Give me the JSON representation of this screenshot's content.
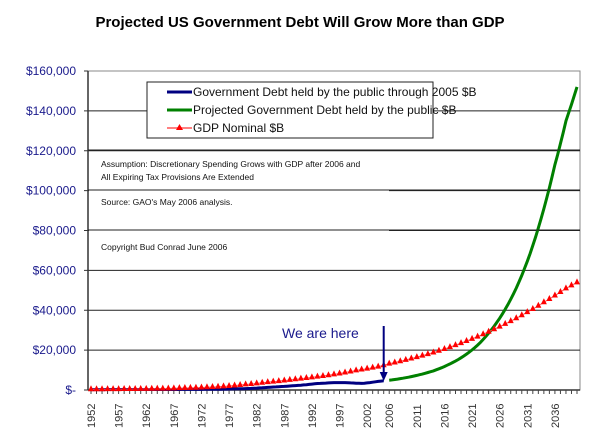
{
  "chart_data": {
    "type": "line",
    "title": "Projected US Government Debt Will Grow More than GDP",
    "xlabel": "",
    "ylabel": "",
    "ylim": [
      0,
      160000
    ],
    "yticks": [
      0,
      20000,
      40000,
      60000,
      80000,
      100000,
      120000,
      140000,
      160000
    ],
    "ytick_labels": [
      "$-",
      "$20,000",
      "$40,000",
      "$60,000",
      "$80,000",
      "$100,000",
      "$120,000",
      "$140,000",
      "$160,000"
    ],
    "xtick_labels": [
      "1952",
      "1957",
      "1962",
      "1967",
      "1972",
      "1977",
      "1982",
      "1987",
      "1992",
      "1997",
      "2002",
      "2006",
      "2011",
      "2016",
      "2021",
      "2026",
      "2031",
      "2036"
    ],
    "grid": "horizontal",
    "legend_position": "top-center",
    "x_start": 1952,
    "x_end": 2040,
    "series": [
      {
        "name": "Government Debt held by the public through 2005 $B",
        "color": "#000080",
        "marker": "none",
        "x": [
          1952,
          1955,
          1960,
          1965,
          1970,
          1975,
          1980,
          1985,
          1990,
          1993,
          1996,
          1998,
          2000,
          2001,
          2002,
          2003,
          2004,
          2005
        ],
        "values": [
          215,
          227,
          237,
          261,
          283,
          395,
          712,
          1507,
          2412,
          3248,
          3734,
          3733,
          3410,
          3320,
          3540,
          3913,
          4296,
          4592
        ]
      },
      {
        "name": "Projected Government Debt held by the public $B",
        "color": "#008000",
        "marker": "none",
        "x": [
          2006,
          2008,
          2010,
          2012,
          2014,
          2016,
          2018,
          2020,
          2022,
          2024,
          2026,
          2028,
          2030,
          2032,
          2034,
          2036,
          2038,
          2040
        ],
        "values": [
          4900,
          5700,
          6700,
          8000,
          9600,
          11800,
          14500,
          18000,
          22500,
          28500,
          36000,
          45500,
          57500,
          72500,
          91000,
          113000,
          135000,
          152000
        ]
      },
      {
        "name": "GDP Nominal $B",
        "color": "#ff0000",
        "marker": "triangle",
        "x": [
          1952,
          1956,
          1960,
          1964,
          1968,
          1972,
          1976,
          1980,
          1984,
          1988,
          1992,
          1996,
          2000,
          2004,
          2006,
          2010,
          2014,
          2018,
          2022,
          2026,
          2030,
          2034,
          2038,
          2040
        ],
        "values": [
          360,
          437,
          527,
          663,
          910,
          1237,
          1825,
          2790,
          3930,
          5100,
          6340,
          7820,
          9820,
          11700,
          13200,
          15800,
          18800,
          22500,
          26800,
          31800,
          37500,
          44000,
          51000,
          54000
        ]
      }
    ],
    "annotations": [
      "Assumption: Discretionary Spending Grows with GDP after 2006 and",
      "All Expiring Tax Provisions Are Extended",
      "Source:  GAO's May 2006 analysis.",
      "Copyright Bud Conrad June 2006"
    ],
    "arrow_annotation": {
      "text": "We are here",
      "year": 2005
    }
  }
}
